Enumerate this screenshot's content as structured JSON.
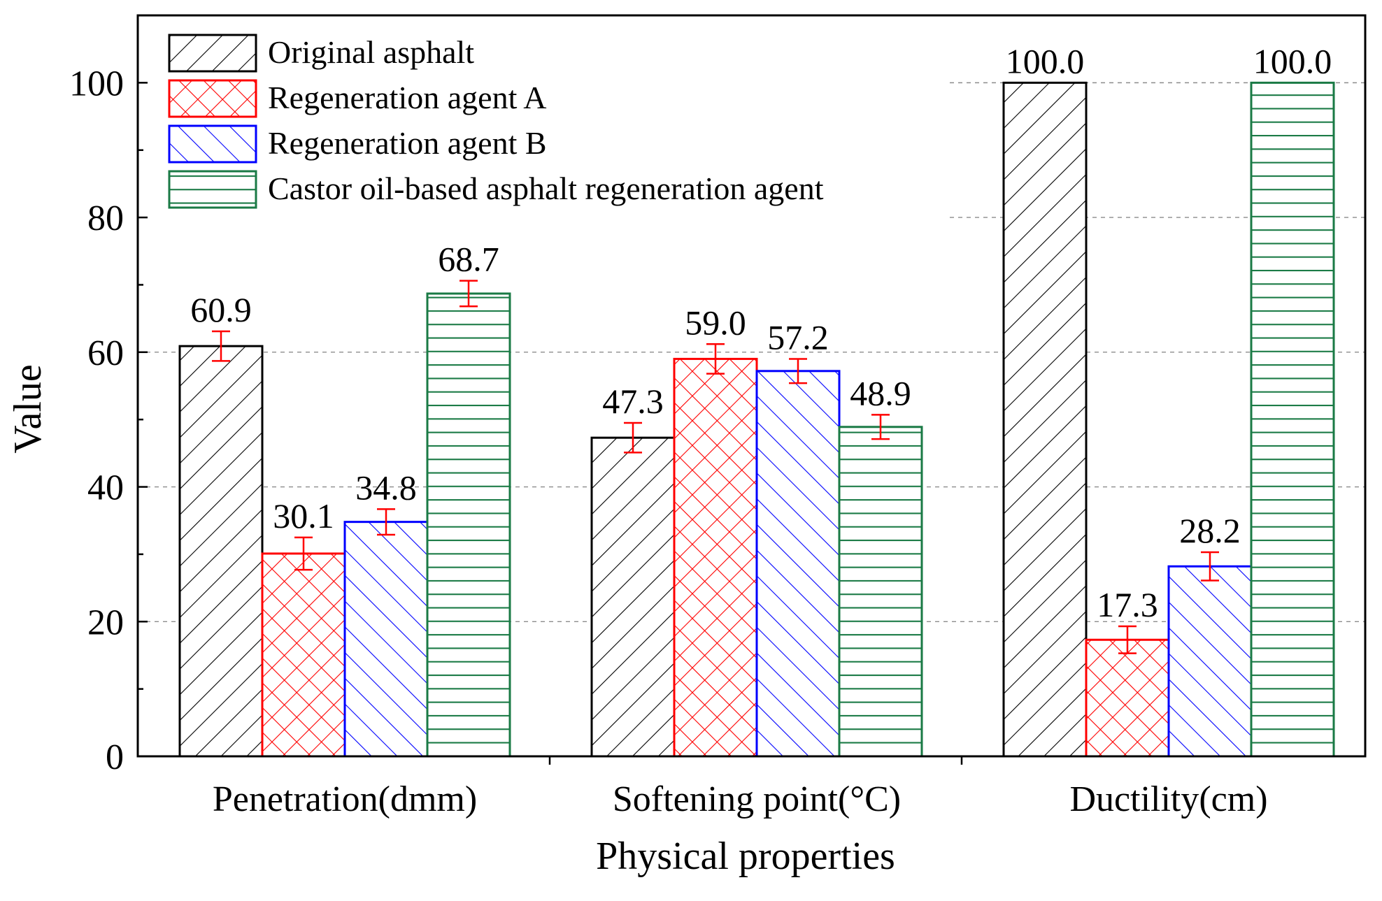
{
  "chart_data": {
    "type": "bar",
    "title": "",
    "xlabel": "Physical properties",
    "ylabel": "Value",
    "ylim": [
      0,
      110
    ],
    "yticks": [
      0,
      20,
      40,
      60,
      80,
      100
    ],
    "grid": "horizontal dashed (right side, above bars)",
    "legend_position": "top-left",
    "categories": [
      "Penetration(dmm)",
      "Softening point(°C)",
      "Ductility(cm)"
    ],
    "series": [
      {
        "name": "Original asphalt",
        "color": "#000000",
        "pattern": "diagonal-forward",
        "values": [
          60.9,
          47.3,
          100.0
        ],
        "errors": [
          2.2,
          2.2,
          null
        ],
        "labels": [
          "60.9",
          "47.3",
          "100.0"
        ]
      },
      {
        "name": "Regeneration agent A",
        "color": "#ff0000",
        "pattern": "crosshatch",
        "values": [
          30.1,
          59.0,
          17.3
        ],
        "errors": [
          2.4,
          2.2,
          2.0
        ],
        "labels": [
          "30.1",
          "59.0",
          "17.3"
        ]
      },
      {
        "name": "Regeneration agent B",
        "color": "#0000ff",
        "pattern": "diagonal-backward",
        "values": [
          34.8,
          57.2,
          28.2
        ],
        "errors": [
          1.9,
          1.8,
          2.1
        ],
        "labels": [
          "34.8",
          "57.2",
          "28.2"
        ]
      },
      {
        "name": "Castor oil-based asphalt regeneration agent",
        "color": "#1a7a45",
        "pattern": "horizontal",
        "values": [
          68.7,
          48.9,
          100.0
        ],
        "errors": [
          1.9,
          1.8,
          null
        ],
        "labels": [
          "68.7",
          "48.9",
          "100.0"
        ]
      }
    ],
    "error_bar_color": "#ff0000"
  }
}
